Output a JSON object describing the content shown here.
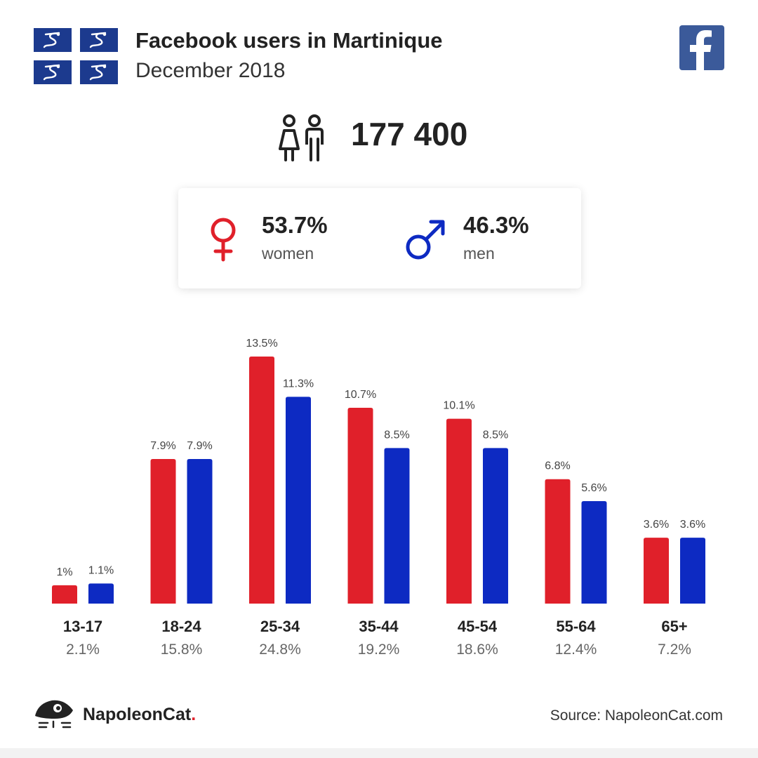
{
  "header": {
    "title": "Facebook users in Martinique",
    "subtitle": "December 2018",
    "flag_icon": "martinique-flag-icon",
    "logo_icon": "facebook-logo-icon"
  },
  "total": {
    "value": "177 400",
    "icon": "users-icon"
  },
  "gender": {
    "women": {
      "pct": "53.7%",
      "label": "women",
      "icon": "female-symbol-icon",
      "color": "#e0202a"
    },
    "men": {
      "pct": "46.3%",
      "label": "men",
      "icon": "male-symbol-icon",
      "color": "#0d2ac2"
    }
  },
  "chart_data": {
    "type": "bar",
    "categories": [
      "13-17",
      "18-24",
      "25-34",
      "35-44",
      "45-54",
      "55-64",
      "65+"
    ],
    "category_totals": [
      "2.1%",
      "15.8%",
      "24.8%",
      "19.2%",
      "18.6%",
      "12.4%",
      "7.2%"
    ],
    "series": [
      {
        "values": [
          1,
          7.9,
          13.5,
          10.7,
          10.1,
          6.8,
          3.6
        ],
        "labels": [
          "1%",
          "7.9%",
          "13.5%",
          "10.7%",
          "10.1%",
          "6.8%",
          "3.6%"
        ],
        "color": "#e0202a"
      },
      {
        "values": [
          1.1,
          7.9,
          11.3,
          8.5,
          8.5,
          5.6,
          3.6
        ],
        "labels": [
          "1.1%",
          "7.9%",
          "11.3%",
          "8.5%",
          "8.5%",
          "5.6%",
          "3.6%"
        ],
        "color": "#0d2ac2"
      }
    ],
    "ylim": [
      0,
      13.5
    ],
    "grid": false,
    "legend": "none"
  },
  "footer": {
    "brand": "NapoleonCat",
    "brand_dot": ".",
    "brand_icon": "napoleoncat-logo-icon",
    "source": "Source: NapoleonCat.com"
  }
}
